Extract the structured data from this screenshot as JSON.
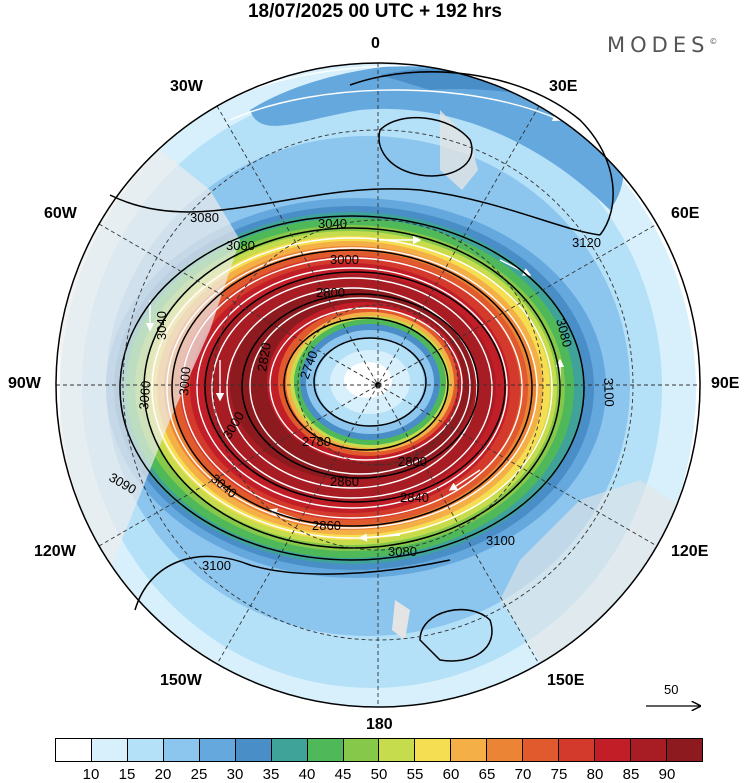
{
  "title": "18/07/2025  00 UTC  + 192 hrs",
  "brand": "MODES",
  "brand_mark": "©",
  "longitude_labels": {
    "lon_0": "0",
    "lon_30e": "30E",
    "lon_60e": "60E",
    "lon_90e": "90E",
    "lon_120e": "120E",
    "lon_150e": "150E",
    "lon_180": "180",
    "lon_150w": "150W",
    "lon_120w": "120W",
    "lon_90w": "90W",
    "lon_60w": "60W",
    "lon_30w": "30W"
  },
  "contour_labels": [
    "3080",
    "3120",
    "2800",
    "3080",
    "3100",
    "3100",
    "2740",
    "2820",
    "2780",
    "2800",
    "2860",
    "2840",
    "3040",
    "3000",
    "3060",
    "3090",
    "3040",
    "3000",
    "3080",
    "3100",
    "3080",
    "3040",
    "3000",
    "2860"
  ],
  "reference_vector": {
    "label": "50"
  },
  "colorbar": {
    "levels": [
      "10",
      "15",
      "20",
      "25",
      "30",
      "35",
      "40",
      "45",
      "50",
      "55",
      "60",
      "65",
      "70",
      "75",
      "80",
      "85",
      "90"
    ],
    "colors": [
      "#ffffff",
      "#d8f0fc",
      "#b4e0f8",
      "#8cc6ee",
      "#64a8de",
      "#4a8ec8",
      "#3fa39a",
      "#4fb858",
      "#86c84a",
      "#c6dc4c",
      "#f6de52",
      "#f4b046",
      "#ec8436",
      "#e05a2e",
      "#d43a2c",
      "#c21e28",
      "#a81c24",
      "#8c1a1e"
    ]
  }
}
